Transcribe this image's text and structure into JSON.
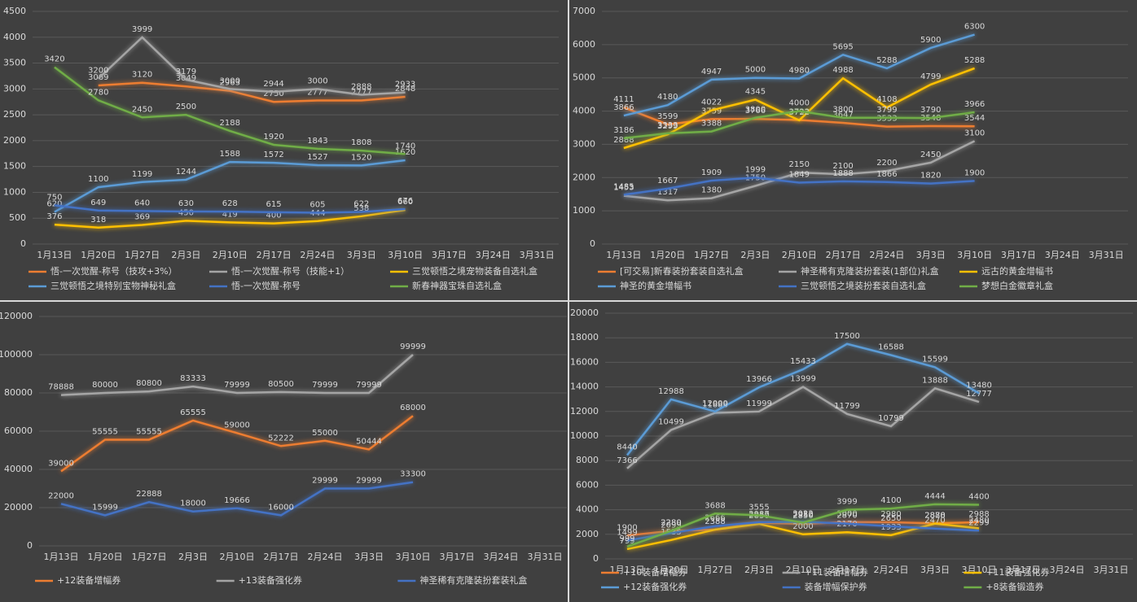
{
  "chart_data": [
    {
      "type": "line",
      "categories": [
        "1月13日",
        "1月20日",
        "1月27日",
        "2月3日",
        "2月10日",
        "2月17日",
        "2月24日",
        "3月3日",
        "3月10日",
        "3月17日",
        "3月24日",
        "3月31日"
      ],
      "ylim": [
        0,
        4500
      ],
      "yticks": [
        0,
        500,
        1000,
        1500,
        2000,
        2500,
        3000,
        3500,
        4000,
        4500
      ],
      "grid": true,
      "series": [
        {
          "name": "悟-一次觉醒-称号（技攻+3%）",
          "color": "#ed7d31",
          "values": [
            null,
            3069,
            3120,
            3049,
            2963,
            2750,
            2777,
            2777,
            2848,
            null,
            null,
            null
          ]
        },
        {
          "name": "悟-一次觉醒-称号（技能+1）",
          "color": "#a5a5a5",
          "values": [
            null,
            3200,
            3999,
            3179,
            3000,
            2944,
            3000,
            2888,
            2933,
            null,
            null,
            null
          ]
        },
        {
          "name": "三觉顿悟之境宠物装备自选礼盒",
          "color": "#ffc000",
          "values": [
            376,
            318,
            369,
            450,
            419,
            400,
            444,
            538,
            660,
            null,
            null,
            null
          ]
        },
        {
          "name": "三觉顿悟之境特别宝物神秘礼盒",
          "color": "#5b9bd5",
          "values": [
            620,
            1100,
            1199,
            1244,
            1588,
            1572,
            1527,
            1520,
            1620,
            null,
            null,
            null
          ]
        },
        {
          "name": "悟-一次觉醒-称号",
          "color": "#4472c4",
          "values": [
            750,
            649,
            640,
            630,
            628,
            615,
            605,
            622,
            676,
            null,
            null,
            null
          ]
        },
        {
          "name": "新春神器宝珠自选礼盒",
          "color": "#70ad47",
          "values": [
            3420,
            2780,
            2450,
            2500,
            2188,
            1920,
            1843,
            1808,
            1740,
            null,
            null,
            null
          ]
        }
      ]
    },
    {
      "type": "line",
      "categories": [
        "1月13日",
        "1月20日",
        "1月27日",
        "2月3日",
        "2月10日",
        "2月17日",
        "2月24日",
        "3月3日",
        "3月10日",
        "3月17日",
        "3月24日",
        "3月31日"
      ],
      "ylim": [
        0,
        7000
      ],
      "yticks": [
        0,
        1000,
        2000,
        3000,
        4000,
        5000,
        6000,
        7000
      ],
      "grid": true,
      "series": [
        {
          "name": "[可交易]新春装扮套装自选礼盒",
          "color": "#ed7d31",
          "values": [
            4111,
            3599,
            3759,
            3766,
            3733,
            3647,
            3533,
            3548,
            3544,
            null,
            null,
            null
          ]
        },
        {
          "name": "神圣稀有克隆装扮套装(1部位)礼盒",
          "color": "#a5a5a5",
          "values": [
            1453,
            1317,
            1380,
            1750,
            2150,
            2100,
            2200,
            2450,
            3100,
            null,
            null,
            null
          ]
        },
        {
          "name": "远古的黄金增幅书",
          "color": "#ffc000",
          "values": [
            2888,
            3299,
            4022,
            4345,
            3722,
            4988,
            4108,
            4799,
            5288,
            null,
            null,
            null
          ]
        },
        {
          "name": "神圣的黄金增幅书",
          "color": "#5b9bd5",
          "values": [
            3866,
            4180,
            4947,
            5000,
            4980,
            5695,
            5288,
            5900,
            6300,
            null,
            null,
            null
          ]
        },
        {
          "name": "三觉顿悟之境装扮套装自选礼盒",
          "color": "#4472c4",
          "values": [
            1485,
            1667,
            1909,
            1999,
            1849,
            1888,
            1866,
            1820,
            1900,
            null,
            null,
            null
          ]
        },
        {
          "name": "梦想白金徽章礼盒",
          "color": "#70ad47",
          "values": [
            3186,
            3333,
            3388,
            3800,
            4000,
            3800,
            3799,
            3790,
            3966,
            null,
            null,
            null
          ]
        }
      ]
    },
    {
      "type": "line",
      "categories": [
        "1月13日",
        "1月20日",
        "1月27日",
        "2月3日",
        "2月10日",
        "2月17日",
        "2月24日",
        "3月3日",
        "3月10日",
        "3月17日",
        "3月24日",
        "3月31日"
      ],
      "ylim": [
        0,
        120000
      ],
      "yticks": [
        0,
        20000,
        40000,
        60000,
        80000,
        100000,
        120000
      ],
      "grid": true,
      "series": [
        {
          "name": "+12装备增幅券",
          "color": "#ed7d31",
          "values": [
            39000,
            55555,
            55555,
            65555,
            59000,
            52222,
            55000,
            50444,
            68000,
            null,
            null,
            null
          ]
        },
        {
          "name": "+13装备强化券",
          "color": "#a5a5a5",
          "values": [
            78888,
            80000,
            80800,
            83333,
            79999,
            80500,
            79999,
            79999,
            99999,
            null,
            null,
            null
          ]
        },
        {
          "name": "神圣稀有克隆装扮套装礼盒",
          "color": "#4472c4",
          "values": [
            22000,
            15999,
            22888,
            18000,
            19666,
            16000,
            29999,
            29999,
            33300,
            null,
            null,
            null
          ]
        }
      ]
    },
    {
      "type": "line",
      "categories": [
        "1月13日",
        "1月20日",
        "1月27日",
        "2月3日",
        "2月10日",
        "2月17日",
        "2月24日",
        "3月3日",
        "3月10日",
        "3月17日",
        "3月24日",
        "3月31日"
      ],
      "ylim": [
        0,
        20000
      ],
      "yticks": [
        0,
        2000,
        4000,
        6000,
        8000,
        10000,
        12000,
        14000,
        16000,
        18000,
        20000
      ],
      "grid": true,
      "series": [
        {
          "name": "+10装备增幅券",
          "color": "#ed7d31",
          "values": [
            1900,
            2280,
            2388,
            2950,
            2850,
            3000,
            2980,
            2888,
            2988,
            null,
            null,
            null
          ]
        },
        {
          "name": "+11装备增幅券",
          "color": "#a5a5a5",
          "values": [
            7366,
            10499,
            11888,
            11999,
            13999,
            11799,
            10799,
            13888,
            12777,
            null,
            null,
            null
          ]
        },
        {
          "name": "+11装备强化券",
          "color": "#ffc000",
          "values": [
            799,
            1535,
            2388,
            2850,
            2000,
            2170,
            1933,
            2870,
            2480,
            null,
            null,
            null
          ]
        },
        {
          "name": "+12装备强化券",
          "color": "#5b9bd5",
          "values": [
            8440,
            12988,
            12000,
            13966,
            15433,
            17500,
            16588,
            15599,
            13480,
            null,
            null,
            null
          ]
        },
        {
          "name": "装备增幅保护券",
          "color": "#4472c4",
          "values": [
            1499,
            2099,
            2666,
            2987,
            3022,
            2870,
            2650,
            2470,
            2299,
            null,
            null,
            null
          ]
        },
        {
          "name": "+8装备锻造券",
          "color": "#70ad47",
          "values": [
            999,
            2280,
            3688,
            3555,
            2950,
            3999,
            4100,
            4444,
            4400,
            null,
            null,
            null
          ]
        }
      ]
    }
  ]
}
